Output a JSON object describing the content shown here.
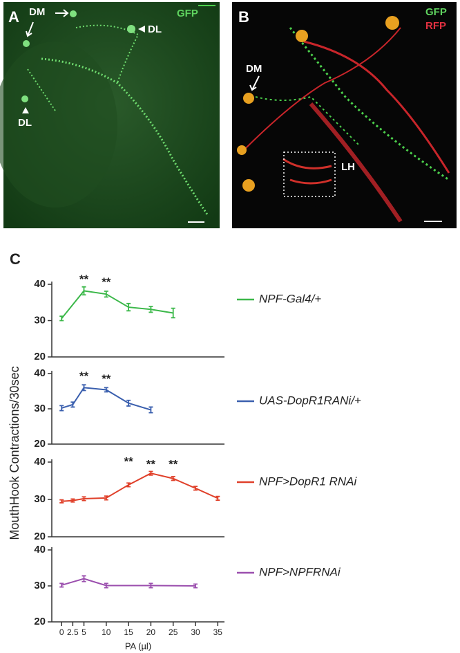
{
  "panel_a": {
    "label": "A",
    "dm": "DM",
    "dl_right": "DL",
    "dl_left": "DL",
    "gfp": "GFP"
  },
  "panel_b": {
    "label": "B",
    "gfp": "GFP",
    "rfp": "RFP",
    "dm": "DM",
    "lh": "LH"
  },
  "panel_c": {
    "label": "C"
  },
  "chart_data": [
    {
      "type": "line",
      "ylabel": "MouthHook Contractions/30sec",
      "xlim": [
        -2.2,
        36.5
      ],
      "ylim": [
        20,
        40
      ],
      "yticks": [
        20,
        30,
        40
      ],
      "x": [
        0,
        5,
        10,
        15,
        20,
        25
      ],
      "series": [
        {
          "name": "NPF-Gal4/+",
          "color": "#3cb84a",
          "values": [
            30.6,
            38.2,
            37.3,
            33.7,
            33.1,
            32.1
          ],
          "errors": [
            0.6,
            1.1,
            0.8,
            1.0,
            0.8,
            1.3
          ]
        }
      ],
      "annotations": [
        {
          "x": 5,
          "text": "**"
        },
        {
          "x": 10,
          "text": "**"
        }
      ]
    },
    {
      "type": "line",
      "xlim": [
        -2.2,
        36.5
      ],
      "ylim": [
        20,
        40
      ],
      "yticks": [
        20,
        30,
        40
      ],
      "x": [
        0,
        2.5,
        5,
        10,
        15,
        20
      ],
      "series": [
        {
          "name": "UAS-DopR1RANi/+",
          "color": "#3a5fae",
          "values": [
            30.2,
            31.2,
            36.0,
            35.4,
            31.6,
            29.7
          ],
          "errors": [
            0.7,
            0.7,
            0.8,
            0.6,
            0.8,
            0.8
          ]
        }
      ],
      "annotations": [
        {
          "x": 5,
          "text": "**"
        },
        {
          "x": 10,
          "text": "**"
        }
      ]
    },
    {
      "type": "line",
      "xlim": [
        -2.2,
        36.5
      ],
      "ylim": [
        20,
        40
      ],
      "yticks": [
        20,
        30,
        40
      ],
      "x": [
        0,
        2.5,
        5,
        10,
        15,
        20,
        25,
        30,
        35
      ],
      "series": [
        {
          "name": "NPF>DopR1 RNAi",
          "color": "#e0402a",
          "values": [
            29.5,
            29.7,
            30.2,
            30.4,
            33.9,
            37.0,
            35.6,
            33.0,
            30.3
          ],
          "errors": [
            0.4,
            0.4,
            0.5,
            0.5,
            0.5,
            0.5,
            0.5,
            0.5,
            0.5
          ]
        }
      ],
      "annotations": [
        {
          "x": 15,
          "text": "**"
        },
        {
          "x": 20,
          "text": "**"
        },
        {
          "x": 25,
          "text": "**"
        }
      ]
    },
    {
      "type": "line",
      "xlabel": "PA (µl)",
      "xlim": [
        -2.2,
        36.5
      ],
      "ylim": [
        20,
        40
      ],
      "yticks": [
        20,
        30,
        40
      ],
      "xticks": [
        0,
        2.5,
        5,
        10,
        15,
        20,
        25,
        30,
        35
      ],
      "x": [
        0,
        5,
        10,
        20,
        30
      ],
      "series": [
        {
          "name": "NPF>NPFRNAi",
          "color": "#9b4fae",
          "values": [
            30.2,
            32.0,
            30.1,
            30.1,
            30.0
          ],
          "errors": [
            0.5,
            0.8,
            0.6,
            0.6,
            0.5
          ]
        }
      ]
    }
  ]
}
